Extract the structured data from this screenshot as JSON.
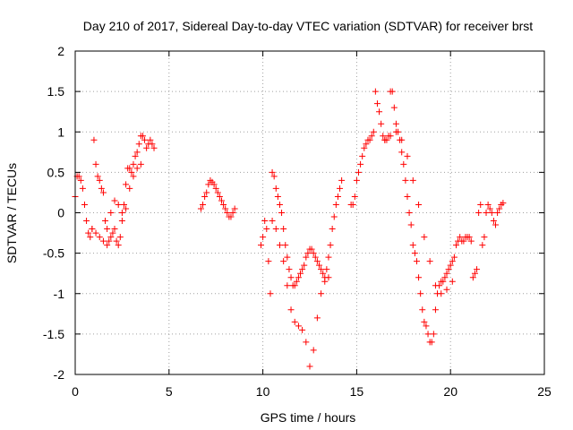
{
  "chart_data": {
    "type": "scatter",
    "title": "Day 210 of 2017, Sidereal Day-to-day VTEC variation (SDTVAR) for receiver brst",
    "xlabel": "GPS time / hours",
    "ylabel": "SDTVAR / TECUs",
    "xlim": [
      0,
      25
    ],
    "ylim": [
      -2,
      2
    ],
    "xticks": [
      0,
      5,
      10,
      15,
      20,
      25
    ],
    "yticks": [
      -2,
      -1.5,
      -1,
      -0.5,
      0,
      0.5,
      1,
      1.5,
      2
    ],
    "xtick_labels": [
      "0",
      "5",
      "10",
      "15",
      "20",
      "25"
    ],
    "ytick_labels": [
      "-2",
      "-1.5",
      "-1",
      "-0.5",
      "0",
      "0.5",
      "1",
      "1.5",
      "2"
    ],
    "grid": true,
    "marker": "+",
    "color": "#ff0000",
    "series": [
      {
        "x": [
          0.0,
          0.1,
          0.2,
          0.3,
          0.4,
          0.5,
          0.6,
          0.7,
          0.8,
          0.9,
          1.0,
          1.1,
          1.2,
          1.3,
          1.4,
          1.5,
          1.6,
          1.7,
          1.8,
          1.9,
          2.0,
          2.1,
          2.2,
          2.3,
          2.4,
          2.5,
          2.6,
          2.7,
          2.8,
          2.9,
          3.0,
          3.1,
          3.2,
          3.3,
          3.4,
          3.5,
          3.6,
          3.7,
          3.8,
          3.9,
          4.0,
          4.1,
          4.2
        ],
        "y": [
          0.2,
          0.45,
          0.45,
          0.4,
          0.3,
          0.1,
          -0.1,
          -0.25,
          -0.3,
          -0.2,
          0.9,
          0.6,
          0.45,
          0.4,
          0.3,
          0.25,
          -0.1,
          -0.4,
          -0.35,
          -0.3,
          -0.25,
          -0.2,
          -0.35,
          -0.4,
          -0.3,
          -0.1,
          0.1,
          0.35,
          0.55,
          0.55,
          0.5,
          0.6,
          0.7,
          0.75,
          0.85,
          0.95,
          0.95,
          0.9,
          0.8,
          0.85,
          0.9,
          0.85,
          0.8
        ]
      },
      {
        "x": [
          0.9,
          1.1,
          1.3,
          1.5,
          1.7,
          1.9,
          2.1,
          2.3,
          2.5,
          2.7,
          2.9,
          3.1,
          3.3,
          3.5
        ],
        "y": [
          -0.2,
          -0.25,
          -0.3,
          -0.35,
          -0.2,
          0.0,
          0.15,
          0.1,
          0.0,
          0.05,
          0.3,
          0.45,
          0.55,
          0.6
        ]
      },
      {
        "x": [
          6.7,
          6.8,
          6.9,
          7.0,
          7.1,
          7.2,
          7.3,
          7.4,
          7.5,
          7.6,
          7.7,
          7.8,
          7.9,
          8.0,
          8.1,
          8.2,
          8.3,
          8.4,
          8.5
        ],
        "y": [
          0.05,
          0.1,
          0.2,
          0.25,
          0.35,
          0.4,
          0.38,
          0.35,
          0.3,
          0.25,
          0.2,
          0.15,
          0.1,
          0.05,
          0.0,
          -0.05,
          -0.05,
          0.0,
          0.05
        ]
      },
      {
        "x": [
          9.9,
          10.0,
          10.1,
          10.2,
          10.3,
          10.4,
          10.5,
          10.6,
          10.7,
          10.8,
          10.9,
          11.0,
          11.1,
          11.2,
          11.3,
          11.4,
          11.5,
          11.6,
          11.7,
          11.8,
          11.9,
          12.0,
          12.1,
          12.2,
          12.3,
          12.4,
          12.5,
          12.6,
          12.7,
          12.8,
          12.9,
          13.0,
          13.1,
          13.2,
          13.3,
          13.4,
          13.5,
          13.6,
          13.7,
          13.8,
          13.9,
          14.0,
          14.1,
          14.2
        ],
        "y": [
          -0.4,
          -0.3,
          -0.1,
          -0.2,
          -0.6,
          -1.0,
          0.5,
          0.45,
          0.3,
          0.2,
          0.1,
          0.0,
          -0.2,
          -0.4,
          -0.55,
          -0.7,
          -0.8,
          -0.9,
          -0.9,
          -0.85,
          -0.8,
          -0.75,
          -0.7,
          -0.65,
          -0.55,
          -0.5,
          -0.45,
          -0.45,
          -0.5,
          -0.55,
          -0.6,
          -0.65,
          -0.7,
          -0.75,
          -0.8,
          -0.7,
          -0.55,
          -0.4,
          -0.2,
          -0.05,
          0.1,
          0.2,
          0.3,
          0.4
        ]
      },
      {
        "x": [
          10.5,
          10.7,
          10.9,
          11.1,
          11.3,
          11.5,
          11.7,
          11.9,
          12.1,
          12.3,
          12.5,
          12.7,
          12.9,
          13.1,
          13.3,
          13.5
        ],
        "y": [
          -0.1,
          -0.2,
          -0.4,
          -0.6,
          -0.9,
          -1.2,
          -1.35,
          -1.4,
          -1.45,
          -1.6,
          -1.9,
          -1.7,
          -1.3,
          -1.0,
          -0.85,
          -0.8
        ]
      },
      {
        "x": [
          14.7,
          14.8,
          14.9,
          15.0,
          15.1,
          15.2,
          15.3,
          15.4,
          15.5,
          15.6,
          15.7,
          15.8,
          15.9,
          16.0,
          16.1,
          16.2,
          16.3,
          16.4,
          16.5,
          16.6,
          16.7,
          16.8,
          16.9,
          17.0,
          17.1,
          17.2,
          17.3,
          17.4,
          17.5,
          17.6,
          17.7,
          17.8,
          17.9,
          18.0,
          18.1,
          18.2,
          18.3,
          18.4,
          18.5,
          18.6,
          18.7,
          18.8,
          18.9,
          19.0,
          19.1,
          19.2,
          19.3,
          19.4,
          19.5,
          19.6,
          19.7,
          19.8,
          19.9,
          20.0,
          20.1,
          20.2,
          20.3,
          20.4,
          20.5
        ],
        "y": [
          0.1,
          0.1,
          0.2,
          0.4,
          0.5,
          0.6,
          0.7,
          0.8,
          0.85,
          0.9,
          0.9,
          0.95,
          1.0,
          1.5,
          1.35,
          1.25,
          1.1,
          0.95,
          0.9,
          0.9,
          0.95,
          1.5,
          1.5,
          1.3,
          1.1,
          1.0,
          0.9,
          0.75,
          0.6,
          0.4,
          0.2,
          0.0,
          -0.15,
          -0.4,
          -0.5,
          -0.6,
          -0.8,
          -1.0,
          -1.2,
          -1.35,
          -1.4,
          -1.5,
          -1.6,
          -1.6,
          -1.5,
          -1.2,
          -1.0,
          -0.9,
          -0.85,
          -0.85,
          -0.8,
          -0.75,
          -0.7,
          -0.65,
          -0.6,
          -0.55,
          -0.4,
          -0.35,
          -0.3
        ]
      },
      {
        "x": [
          16.5,
          16.8,
          17.1,
          17.4,
          17.7,
          18.0,
          18.3,
          18.6,
          18.9,
          19.2,
          19.5,
          19.8,
          20.1
        ],
        "y": [
          0.9,
          0.95,
          1.0,
          0.9,
          0.7,
          0.4,
          0.1,
          -0.3,
          -0.6,
          -0.9,
          -1.0,
          -0.95,
          -0.85
        ]
      },
      {
        "x": [
          20.6,
          20.7,
          20.8,
          20.9,
          21.0,
          21.1,
          21.2,
          21.3,
          21.4,
          21.5,
          21.6,
          21.7,
          21.8,
          21.9,
          22.0,
          22.1,
          22.2,
          22.3,
          22.4,
          22.5,
          22.6,
          22.7,
          22.8
        ],
        "y": [
          -0.35,
          -0.35,
          -0.3,
          -0.3,
          -0.3,
          -0.35,
          -0.8,
          -0.75,
          -0.7,
          0.0,
          0.1,
          -0.4,
          -0.3,
          0.0,
          0.1,
          0.05,
          0.0,
          -0.1,
          -0.15,
          0.0,
          0.05,
          0.1,
          0.12
        ]
      }
    ]
  }
}
